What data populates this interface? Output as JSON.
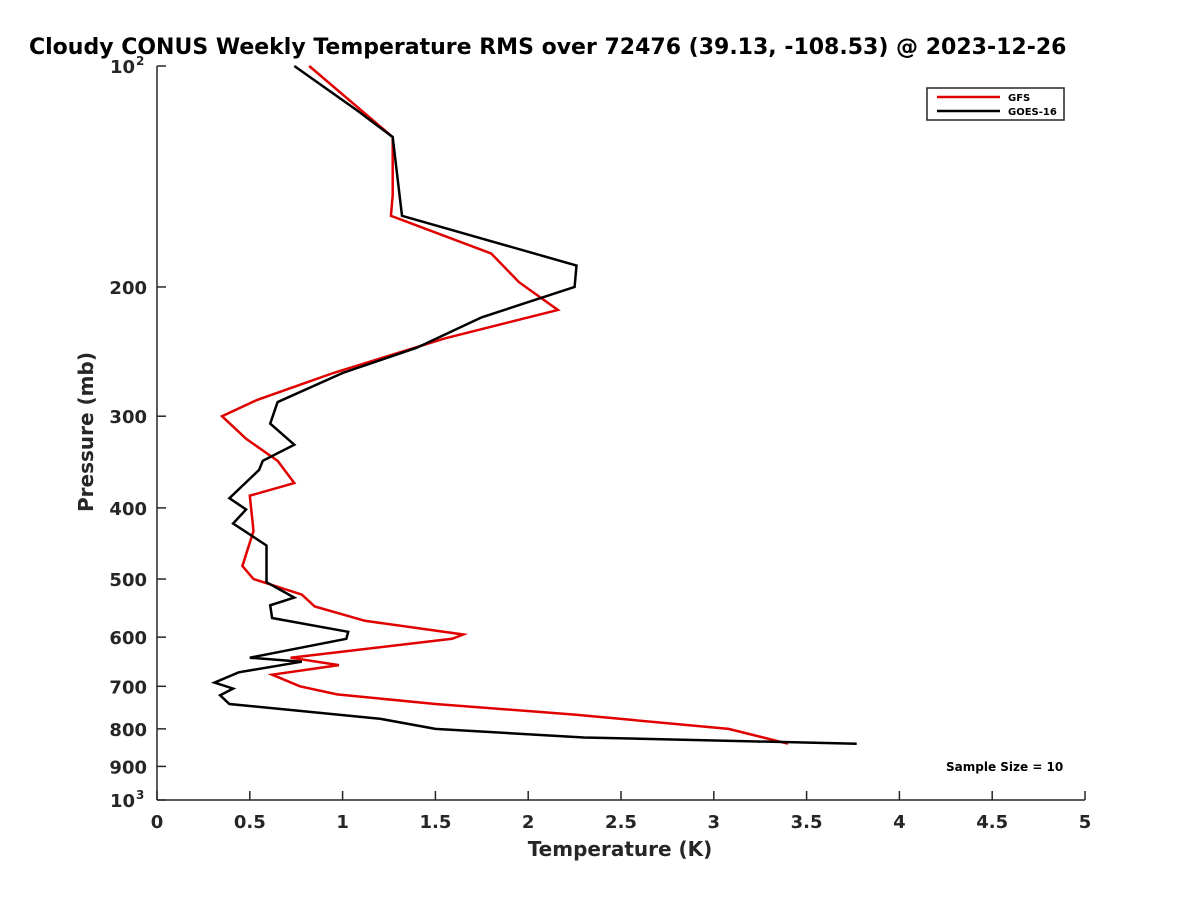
{
  "chart_data": {
    "type": "line",
    "title": "Cloudy CONUS Weekly Temperature RMS over 72476 (39.13, -108.53) @ 2023-12-26",
    "xlabel": "Temperature (K)",
    "ylabel": "Pressure (mb)",
    "xlim": [
      0,
      5
    ],
    "ylim": [
      100,
      1000
    ],
    "y_scale": "log",
    "y_reversed": true,
    "x_ticks": [
      "0",
      "0.5",
      "1",
      "1.5",
      "2",
      "2.5",
      "3",
      "3.5",
      "4",
      "4.5",
      "5"
    ],
    "y_ticks": [
      {
        "value": 100,
        "label": "10",
        "exp": "2"
      },
      {
        "value": 200,
        "label": "200"
      },
      {
        "value": 300,
        "label": "300"
      },
      {
        "value": 400,
        "label": "400"
      },
      {
        "value": 500,
        "label": "500"
      },
      {
        "value": 600,
        "label": "600"
      },
      {
        "value": 700,
        "label": "700"
      },
      {
        "value": 800,
        "label": "800"
      },
      {
        "value": 900,
        "label": "900"
      },
      {
        "value": 1000,
        "label": "10",
        "exp": "3"
      }
    ],
    "grid": false,
    "legend_position": "top-right",
    "annotation": "Sample Size = 10",
    "series": [
      {
        "name": "GFS",
        "color": "#e00000",
        "points": [
          [
            0.82,
            100
          ],
          [
            1.27,
            125
          ],
          [
            1.27,
            150
          ],
          [
            1.26,
            160
          ],
          [
            1.8,
            180
          ],
          [
            1.95,
            197
          ],
          [
            2.16,
            215
          ],
          [
            1.55,
            235
          ],
          [
            0.95,
            262
          ],
          [
            0.54,
            285
          ],
          [
            0.35,
            300
          ],
          [
            0.48,
            322
          ],
          [
            0.65,
            345
          ],
          [
            0.74,
            370
          ],
          [
            0.5,
            385
          ],
          [
            0.52,
            430
          ],
          [
            0.46,
            480
          ],
          [
            0.52,
            500
          ],
          [
            0.78,
            525
          ],
          [
            0.85,
            545
          ],
          [
            1.12,
            570
          ],
          [
            1.65,
            595
          ],
          [
            1.59,
            603
          ],
          [
            0.72,
            640
          ],
          [
            0.98,
            655
          ],
          [
            0.62,
            675
          ],
          [
            0.77,
            700
          ],
          [
            0.97,
            718
          ],
          [
            1.5,
            740
          ],
          [
            2.25,
            765
          ],
          [
            3.08,
            800
          ],
          [
            3.4,
            838
          ]
        ]
      },
      {
        "name": "GOES-16",
        "color": "#000000",
        "points": [
          [
            0.74,
            100
          ],
          [
            1.08,
            115
          ],
          [
            1.27,
            125
          ],
          [
            1.32,
            160
          ],
          [
            2.26,
            187
          ],
          [
            2.25,
            200
          ],
          [
            1.75,
            220
          ],
          [
            1.4,
            242
          ],
          [
            1.0,
            262
          ],
          [
            0.65,
            287
          ],
          [
            0.61,
            307
          ],
          [
            0.74,
            328
          ],
          [
            0.57,
            345
          ],
          [
            0.55,
            355
          ],
          [
            0.39,
            388
          ],
          [
            0.48,
            402
          ],
          [
            0.41,
            420
          ],
          [
            0.59,
            450
          ],
          [
            0.59,
            505
          ],
          [
            0.74,
            530
          ],
          [
            0.61,
            543
          ],
          [
            0.62,
            565
          ],
          [
            1.03,
            590
          ],
          [
            1.02,
            603
          ],
          [
            0.5,
            640
          ],
          [
            0.78,
            648
          ],
          [
            0.44,
            670
          ],
          [
            0.31,
            692
          ],
          [
            0.41,
            705
          ],
          [
            0.34,
            720
          ],
          [
            0.39,
            740
          ],
          [
            1.2,
            775
          ],
          [
            1.5,
            800
          ],
          [
            2.3,
            822
          ],
          [
            3.77,
            838
          ]
        ]
      }
    ]
  }
}
